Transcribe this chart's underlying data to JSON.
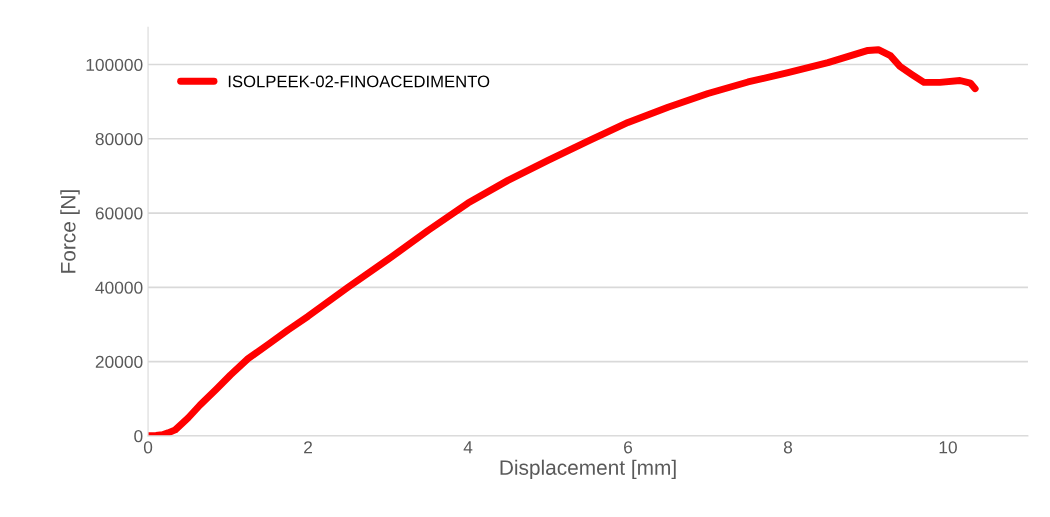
{
  "chart_data": {
    "type": "line",
    "xlabel": "Displacement [mm]",
    "ylabel": "Force [N]",
    "xlim": [
      0,
      11
    ],
    "xticks": [
      0,
      2,
      4,
      6,
      8,
      10
    ],
    "ylim": [
      0,
      110000
    ],
    "yticks": [
      0,
      20000,
      40000,
      60000,
      80000,
      100000
    ],
    "grid": "y",
    "legend": "top left",
    "marker": "none",
    "line_style": "solid",
    "series": [
      {
        "name": "ISOLPEEK-02-FINOACEDIMENTO",
        "color": "#ff0000",
        "x": [
          0,
          0.1,
          0.18,
          0.25,
          0.34,
          0.5,
          0.65,
          0.85,
          1.03,
          1.25,
          1.5,
          1.75,
          2.0,
          2.5,
          3.0,
          3.5,
          4.0,
          4.5,
          5.0,
          5.5,
          6.0,
          6.5,
          7.0,
          7.5,
          8.0,
          8.5,
          9.0,
          9.13,
          9.28,
          9.4,
          9.55,
          9.7,
          9.9,
          10.15,
          10.28,
          10.34
        ],
        "values": [
          0,
          100,
          300,
          800,
          1600,
          4800,
          8300,
          12500,
          16400,
          20800,
          24600,
          28500,
          32200,
          40000,
          47500,
          55300,
          62700,
          68800,
          74200,
          79400,
          84400,
          88500,
          92200,
          95300,
          97800,
          100500,
          103800,
          104000,
          102400,
          99500,
          97300,
          95200,
          95200,
          95700,
          95000,
          93500
        ]
      }
    ]
  }
}
